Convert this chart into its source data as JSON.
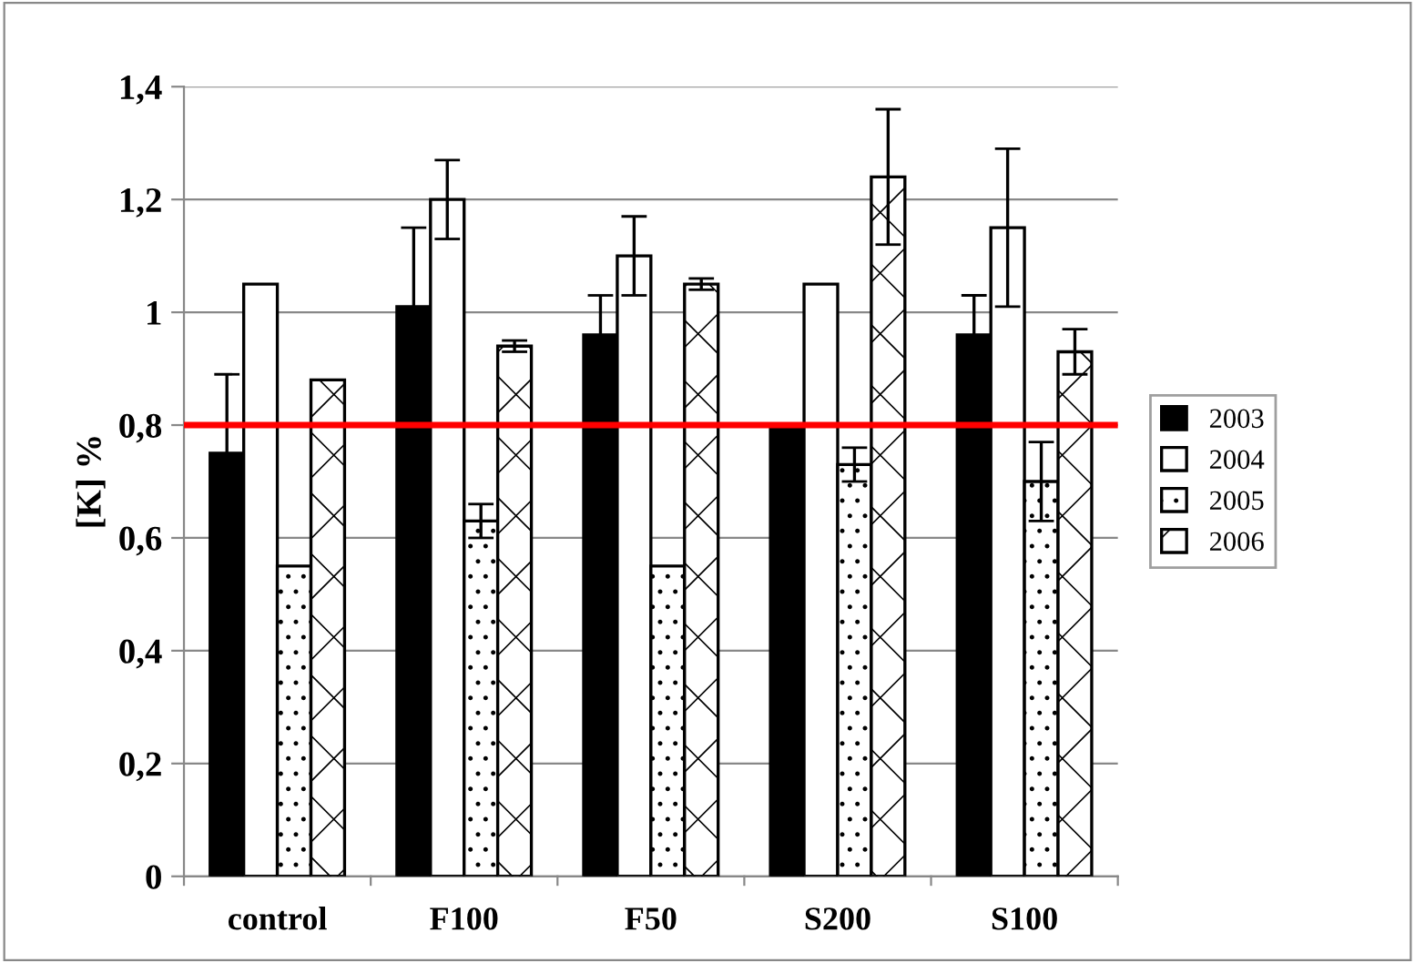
{
  "chart_data": {
    "type": "bar",
    "ylabel": "[K] %",
    "categories": [
      "control",
      "F100",
      "F50",
      "S200",
      "S100"
    ],
    "series": [
      {
        "name": "2003",
        "color": "#000000",
        "values": [
          0.75,
          1.01,
          0.96,
          0.8,
          0.96
        ],
        "errors": [
          0.14,
          0.14,
          0.07,
          null,
          0.07
        ]
      },
      {
        "name": "2004",
        "color": "#ffffff",
        "values": [
          1.05,
          1.2,
          1.1,
          1.05,
          1.15
        ],
        "errors": [
          null,
          0.07,
          0.07,
          null,
          0.14
        ]
      },
      {
        "name": "2005",
        "color": "#ffffff",
        "values": [
          0.55,
          0.63,
          0.55,
          0.73,
          0.7
        ],
        "errors": [
          null,
          0.03,
          null,
          0.03,
          0.07
        ]
      },
      {
        "name": "2006",
        "color": "#ffffff",
        "values": [
          0.88,
          0.94,
          1.05,
          1.24,
          0.93
        ],
        "errors": [
          null,
          0.01,
          0.01,
          0.12,
          0.04
        ]
      }
    ],
    "ylim": [
      0,
      1.4
    ],
    "yticks": [
      {
        "value": 0,
        "label": "0"
      },
      {
        "value": 0.2,
        "label": "0,2"
      },
      {
        "value": 0.4,
        "label": "0,4"
      },
      {
        "value": 0.6,
        "label": "0,6"
      },
      {
        "value": 0.8,
        "label": "0,8"
      },
      {
        "value": 1,
        "label": "1"
      },
      {
        "value": 1.2,
        "label": "1,2"
      },
      {
        "value": 1.4,
        "label": "1,4"
      }
    ],
    "grid": "y",
    "legend": "right",
    "ref_lines": [
      {
        "axis": "y",
        "value": 0.8,
        "color": "#ff0000",
        "line_style": "solid"
      }
    ]
  }
}
